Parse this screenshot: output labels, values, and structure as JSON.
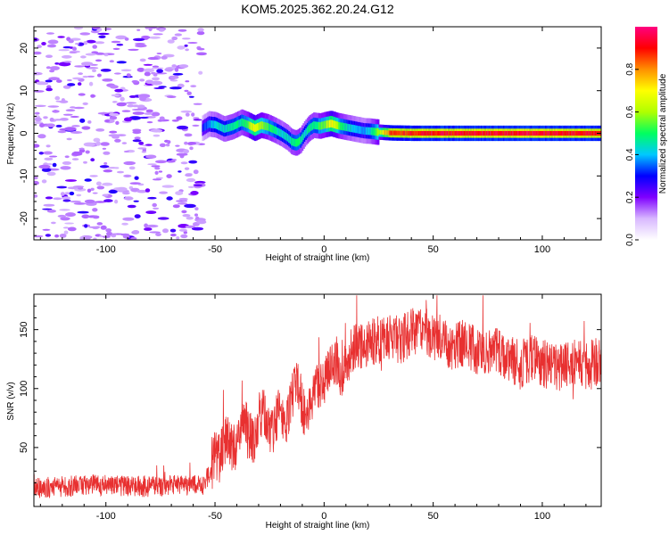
{
  "title": "KOM5.2025.362.20.24.G12",
  "chart_data": [
    {
      "type": "heatmap",
      "name": "spectrogram",
      "xlabel": "Height of straight line (km)",
      "ylabel": "Frequency (Hz)",
      "xlim": [
        -133,
        127
      ],
      "ylim": [
        -25,
        25
      ],
      "xticks": [
        -100,
        -50,
        0,
        50,
        100
      ],
      "yticks": [
        -20,
        -10,
        0,
        10,
        20
      ],
      "colorbar": {
        "label": "Normalized spectral amplitude",
        "range": [
          0,
          1
        ],
        "ticks": [
          0.0,
          0.2,
          0.4,
          0.6,
          0.8
        ],
        "tick_labels": [
          "0.0",
          "0.2",
          "0.4",
          "0.6",
          "0.8"
        ],
        "colors": [
          "#ffffff",
          "#d8b8ff",
          "#7f00ff",
          "#0000ff",
          "#00c8ff",
          "#00ff60",
          "#b0ff00",
          "#ffff00",
          "#ff9000",
          "#ff0000",
          "#ff0080"
        ]
      },
      "noise_region_x": [
        -133,
        -56
      ],
      "doppler_trace": {
        "x": [
          -56,
          -53,
          -50,
          -46,
          -42,
          -38,
          -35,
          -32,
          -29,
          -26,
          -23,
          -20,
          -17,
          -15,
          -13,
          -11,
          -9,
          -7,
          -5,
          -2,
          0,
          3,
          6,
          9,
          12,
          15,
          18,
          21,
          24,
          30,
          40,
          60,
          80,
          100,
          127
        ],
        "freq": [
          1.2,
          2.2,
          2.0,
          1.0,
          1.6,
          2.6,
          2.0,
          1.2,
          1.9,
          1.5,
          0.8,
          0.0,
          -1.0,
          -2.0,
          -2.3,
          -1.6,
          0.0,
          1.2,
          1.9,
          1.7,
          2.0,
          2.3,
          1.8,
          1.5,
          1.2,
          0.9,
          0.6,
          0.5,
          0.3,
          0.1,
          0.0,
          0.0,
          0.0,
          0.0,
          0.0
        ],
        "amplitude": [
          0.3,
          0.4,
          0.45,
          0.45,
          0.5,
          0.5,
          0.6,
          0.75,
          0.6,
          0.55,
          0.5,
          0.45,
          0.45,
          0.5,
          0.55,
          0.5,
          0.45,
          0.5,
          0.5,
          0.55,
          0.6,
          0.75,
          0.6,
          0.5,
          0.45,
          0.4,
          0.4,
          0.45,
          0.6,
          0.9,
          0.95,
          0.97,
          0.97,
          0.97,
          0.97
        ]
      }
    },
    {
      "type": "line",
      "name": "snr",
      "xlabel": "Height of straight line (km)",
      "ylabel": "SNR (v/v)",
      "xlim": [
        -133,
        127
      ],
      "ylim": [
        0,
        180
      ],
      "xticks": [
        -100,
        -50,
        0,
        50,
        100
      ],
      "yticks": [
        50,
        100,
        150
      ],
      "color": "#e83030",
      "series": [
        {
          "name": "SNR",
          "x": [
            -133,
            -120,
            -110,
            -100,
            -90,
            -80,
            -70,
            -60,
            -55,
            -52,
            -50,
            -48,
            -46,
            -44,
            -42,
            -40,
            -38,
            -36,
            -34,
            -32,
            -30,
            -28,
            -26,
            -24,
            -22,
            -20,
            -18,
            -16,
            -14,
            -12,
            -10,
            -8,
            -6,
            -4,
            -2,
            0,
            2,
            4,
            6,
            8,
            10,
            12,
            15,
            20,
            25,
            30,
            35,
            40,
            45,
            50,
            55,
            60,
            65,
            70,
            75,
            80,
            85,
            90,
            95,
            100,
            105,
            110,
            115,
            120,
            127
          ],
          "y": [
            15,
            17,
            18,
            18,
            17,
            17,
            18,
            18,
            19,
            30,
            45,
            40,
            55,
            60,
            50,
            48,
            65,
            70,
            60,
            55,
            75,
            80,
            70,
            60,
            75,
            85,
            70,
            80,
            100,
            105,
            85,
            75,
            90,
            100,
            105,
            105,
            115,
            120,
            125,
            110,
            120,
            130,
            135,
            140,
            142,
            145,
            140,
            148,
            150,
            145,
            140,
            135,
            140,
            130,
            128,
            132,
            125,
            120,
            125,
            122,
            118,
            120,
            122,
            118,
            125
          ]
        }
      ]
    }
  ]
}
